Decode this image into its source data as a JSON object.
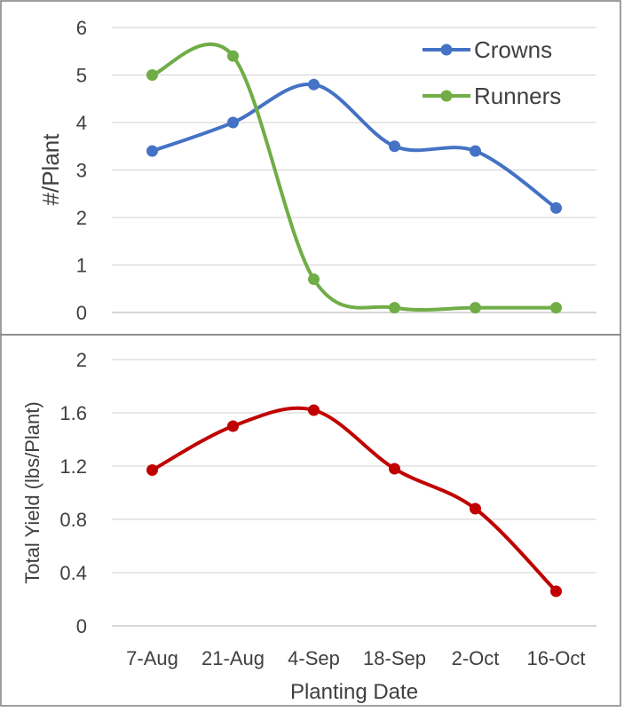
{
  "chart_data": [
    {
      "type": "line",
      "smooth": true,
      "title": "",
      "xlabel": "",
      "ylabel": "#/Plant",
      "categories": [
        "7-Aug",
        "21-Aug",
        "4-Sep",
        "18-Sep",
        "2-Oct",
        "16-Oct"
      ],
      "ylim": [
        0,
        6
      ],
      "yticks": [
        "0",
        "1",
        "2",
        "3",
        "4",
        "5",
        "6"
      ],
      "grid": true,
      "legend": "top-right",
      "series": [
        {
          "name": "Crowns",
          "color": "#4472c4",
          "values": [
            3.4,
            4.0,
            4.8,
            3.5,
            3.4,
            2.2
          ]
        },
        {
          "name": "Runners",
          "color": "#70ad47",
          "values": [
            5.0,
            5.4,
            0.7,
            0.1,
            0.1,
            0.1
          ]
        }
      ]
    },
    {
      "type": "line",
      "smooth": true,
      "title": "",
      "xlabel": "Planting Date",
      "ylabel": "Total Yield (lbs/Plant)",
      "categories": [
        "7-Aug",
        "21-Aug",
        "4-Sep",
        "18-Sep",
        "2-Oct",
        "16-Oct"
      ],
      "ylim": [
        0,
        2
      ],
      "yticks": [
        "0",
        "0.4",
        "0.8",
        "1.2",
        "1.6",
        "2"
      ],
      "grid": true,
      "series": [
        {
          "color": "#c00000",
          "values": [
            1.17,
            1.5,
            1.62,
            1.18,
            0.88,
            0.26
          ]
        }
      ]
    }
  ]
}
